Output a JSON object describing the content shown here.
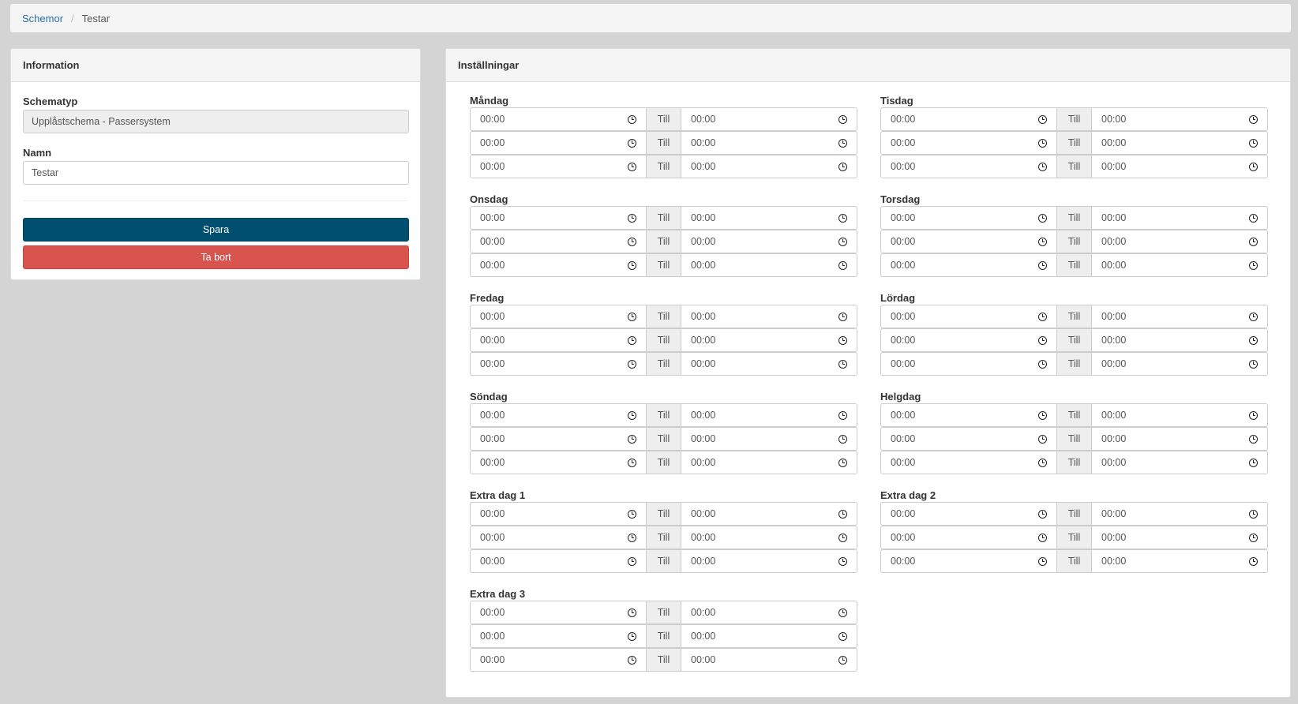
{
  "breadcrumb": {
    "parent": "Schemor",
    "separator": "/",
    "current": "Testar"
  },
  "info": {
    "heading": "Information",
    "schematyp_label": "Schematyp",
    "schematyp_value": "Upplåstschema - Passersystem",
    "namn_label": "Namn",
    "namn_value": "Testar",
    "save_label": "Spara",
    "delete_label": "Ta bort"
  },
  "settings": {
    "heading": "Inställningar",
    "till_label": "Till",
    "days": [
      {
        "name": "Måndag",
        "rows": [
          [
            "00:00",
            "00:00"
          ],
          [
            "00:00",
            "00:00"
          ],
          [
            "00:00",
            "00:00"
          ]
        ]
      },
      {
        "name": "Tisdag",
        "rows": [
          [
            "00:00",
            "00:00"
          ],
          [
            "00:00",
            "00:00"
          ],
          [
            "00:00",
            "00:00"
          ]
        ]
      },
      {
        "name": "Onsdag",
        "rows": [
          [
            "00:00",
            "00:00"
          ],
          [
            "00:00",
            "00:00"
          ],
          [
            "00:00",
            "00:00"
          ]
        ]
      },
      {
        "name": "Torsdag",
        "rows": [
          [
            "00:00",
            "00:00"
          ],
          [
            "00:00",
            "00:00"
          ],
          [
            "00:00",
            "00:00"
          ]
        ]
      },
      {
        "name": "Fredag",
        "rows": [
          [
            "00:00",
            "00:00"
          ],
          [
            "00:00",
            "00:00"
          ],
          [
            "00:00",
            "00:00"
          ]
        ]
      },
      {
        "name": "Lördag",
        "rows": [
          [
            "00:00",
            "00:00"
          ],
          [
            "00:00",
            "00:00"
          ],
          [
            "00:00",
            "00:00"
          ]
        ]
      },
      {
        "name": "Söndag",
        "rows": [
          [
            "00:00",
            "00:00"
          ],
          [
            "00:00",
            "00:00"
          ],
          [
            "00:00",
            "00:00"
          ]
        ]
      },
      {
        "name": "Helgdag",
        "rows": [
          [
            "00:00",
            "00:00"
          ],
          [
            "00:00",
            "00:00"
          ],
          [
            "00:00",
            "00:00"
          ]
        ]
      },
      {
        "name": "Extra dag 1",
        "rows": [
          [
            "00:00",
            "00:00"
          ],
          [
            "00:00",
            "00:00"
          ],
          [
            "00:00",
            "00:00"
          ]
        ]
      },
      {
        "name": "Extra dag 2",
        "rows": [
          [
            "00:00",
            "00:00"
          ],
          [
            "00:00",
            "00:00"
          ],
          [
            "00:00",
            "00:00"
          ]
        ]
      },
      {
        "name": "Extra dag 3",
        "rows": [
          [
            "00:00",
            "00:00"
          ],
          [
            "00:00",
            "00:00"
          ],
          [
            "00:00",
            "00:00"
          ]
        ]
      }
    ]
  }
}
